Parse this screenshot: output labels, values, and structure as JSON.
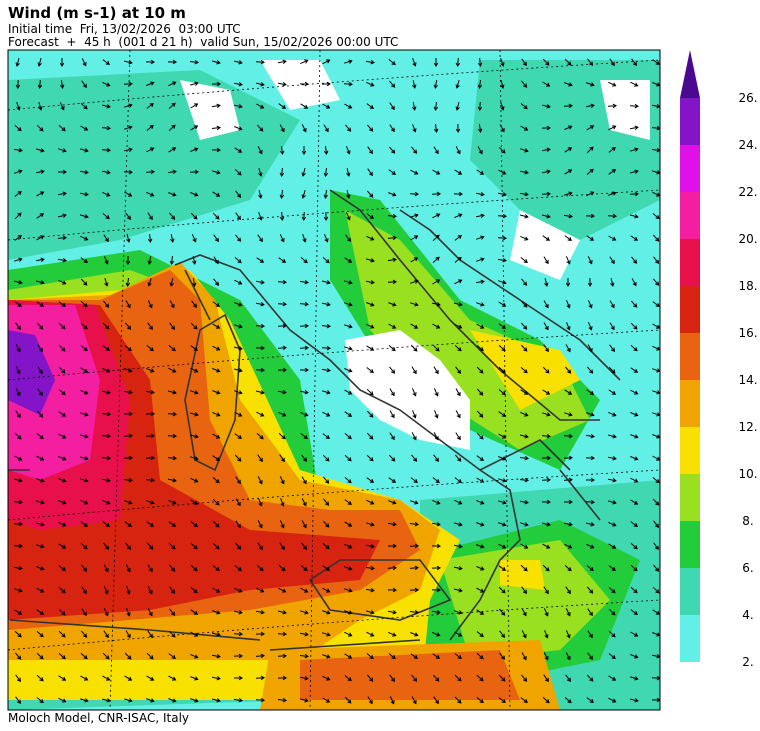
{
  "header": {
    "title": "Wind (m s-1) at 10 m",
    "initial_time": "Initial time  Fri, 13/02/2026  03:00 UTC",
    "forecast": "Forecast  +  45 h  (001 d 21 h)  valid Sun, 15/02/2026 00:00 UTC"
  },
  "colorbar": {
    "ticks": [
      {
        "value": 2,
        "label": "2."
      },
      {
        "value": 4,
        "label": "4."
      },
      {
        "value": 6,
        "label": "6."
      },
      {
        "value": 8,
        "label": "8."
      },
      {
        "value": 10,
        "label": "10."
      },
      {
        "value": 12,
        "label": "12."
      },
      {
        "value": 14,
        "label": "14."
      },
      {
        "value": 16,
        "label": "16."
      },
      {
        "value": 18,
        "label": "18."
      },
      {
        "value": 20,
        "label": "20."
      },
      {
        "value": 22,
        "label": "22."
      },
      {
        "value": 24,
        "label": "24."
      },
      {
        "value": 26,
        "label": "26."
      }
    ],
    "colors": [
      "#62f0e6",
      "#40d8b0",
      "#22cc3a",
      "#98e020",
      "#f8e000",
      "#f0a400",
      "#e86410",
      "#d62410",
      "#e8104a",
      "#f41ea0",
      "#e010e8",
      "#8414c8",
      "#4a0a90"
    ],
    "extend": "max"
  },
  "footer": "Moloch Model, CNR-ISAC, Italy"
}
